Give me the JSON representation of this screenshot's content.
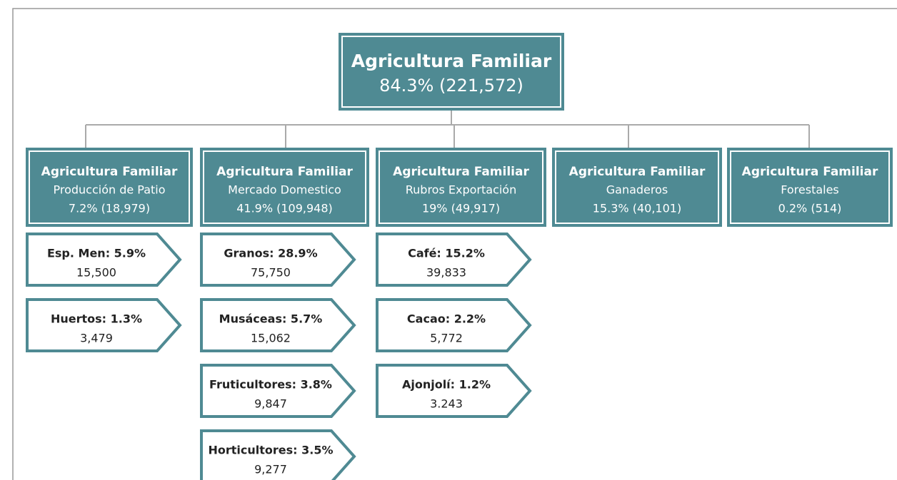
{
  "root": {
    "title": "Agricultura Familiar",
    "subtitle": "84.3% (221,572)"
  },
  "branches": [
    {
      "title": "Agricultura Familiar",
      "subtitle": "Producción de Patio",
      "value": "7.2% (18,979)",
      "items": [
        {
          "label": "Esp. Men: 5.9%",
          "value": "15,500"
        },
        {
          "label": "Huertos: 1.3%",
          "value": "3,479"
        }
      ]
    },
    {
      "title": "Agricultura Familiar",
      "subtitle": "Mercado Domestico",
      "value": "41.9% (109,948)",
      "items": [
        {
          "label": "Granos: 28.9%",
          "value": "75,750"
        },
        {
          "label": "Musáceas: 5.7%",
          "value": "15,062"
        },
        {
          "label": "Fruticultores: 3.8%",
          "value": "9,847"
        },
        {
          "label": "Horticultores: 3.5%",
          "value": "9,277"
        }
      ]
    },
    {
      "title": "Agricultura Familiar",
      "subtitle": "Rubros Exportación",
      "value": "19% (49,917)",
      "items": [
        {
          "label": "Café: 15.2%",
          "value": "39,833"
        },
        {
          "label": "Cacao: 2.2%",
          "value": "5,772"
        },
        {
          "label": "Ajonjolí: 1.2%",
          "value": "3.243"
        }
      ]
    },
    {
      "title": "Agricultura Familiar",
      "subtitle": "Ganaderos",
      "value": "15.3% (40,101)",
      "items": []
    },
    {
      "title": "Agricultura Familiar",
      "subtitle": "Forestales",
      "value": "0.2% (514)",
      "items": []
    }
  ]
}
